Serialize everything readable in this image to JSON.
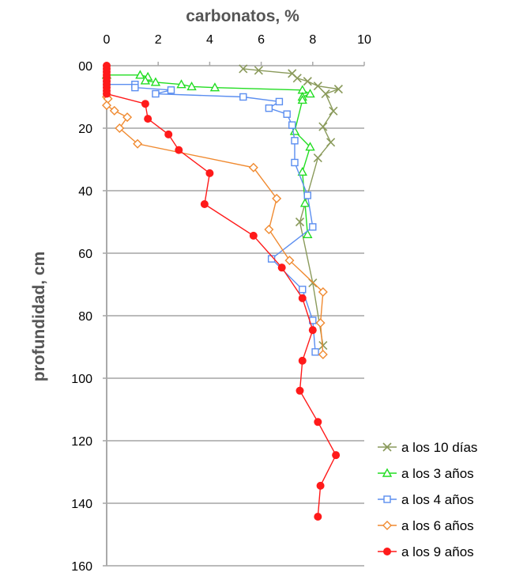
{
  "chart_data": {
    "type": "scatter",
    "title": "carbonatos,  %",
    "xlabel": "carbonatos,  %",
    "ylabel": "profundidad,  cm",
    "xlim": [
      0,
      10
    ],
    "ylim": [
      0,
      160
    ],
    "y_inverted": true,
    "x_axis_position": "top",
    "xticks": [
      "0",
      "2",
      "4",
      "6",
      "8",
      "10"
    ],
    "yticks": [
      "00",
      "20",
      "40",
      "60",
      "80",
      "100",
      "120",
      "140",
      "160"
    ],
    "grid": "horizontal",
    "legend_position": "bottom-right",
    "series": [
      {
        "name": "a los 10 días",
        "color": "#8a9a5b",
        "marker": "x",
        "x": [
          5.3,
          5.9,
          7.2,
          7.4,
          7.8,
          8.2,
          9.0,
          8.5,
          8.8,
          8.4,
          8.7,
          8.2,
          7.5,
          8.0,
          8.4
        ],
        "y": [
          1,
          1.5,
          2.5,
          4,
          5,
          6.5,
          7.5,
          9,
          14.5,
          19.5,
          24.5,
          29.5,
          50,
          69.5,
          89.5
        ]
      },
      {
        "name": "a los 3 años",
        "color": "#22dd22",
        "marker": "triangle",
        "x": [
          0,
          1.3,
          1.6,
          1.5,
          1.9,
          2.9,
          3.3,
          4.2,
          7.6,
          7.9,
          7.6,
          7.6,
          7.3,
          7.9,
          7.6,
          7.7,
          7.8
        ],
        "y": [
          3,
          3,
          3.6,
          4.8,
          5.3,
          6,
          6.7,
          7,
          7.8,
          9,
          10,
          11,
          21,
          26,
          34,
          44,
          54
        ]
      },
      {
        "name": "a los 4 años",
        "color": "#5b8ef0",
        "marker": "square",
        "x": [
          0,
          1.1,
          1.1,
          2.5,
          1.9,
          5.3,
          6.7,
          6.3,
          7.0,
          7.2,
          7.3,
          7.3,
          7.8,
          8.0,
          6.4,
          7.6,
          8.0,
          8.1
        ],
        "y": [
          6,
          6,
          7,
          7.8,
          9,
          10,
          11.5,
          13.6,
          15.5,
          19,
          24,
          31,
          41.5,
          51.6,
          61.8,
          71.6,
          81.5,
          91.6
        ]
      },
      {
        "name": "a los 6 años",
        "color": "#f08a30",
        "marker": "diamond",
        "x": [
          0,
          0.05,
          0,
          0.3,
          0.8,
          0.5,
          1.2,
          5.7,
          6.6,
          6.3,
          7.1,
          8.4,
          8.3,
          8.4
        ],
        "y": [
          10,
          10.6,
          12.7,
          14.4,
          16.5,
          20,
          25,
          32.6,
          42.5,
          52.4,
          62.3,
          72.4,
          82.3,
          92.4
        ]
      },
      {
        "name": "a los 9 años",
        "color": "#ff1a1a",
        "marker": "circle",
        "x": [
          0,
          0,
          0,
          0,
          0,
          0,
          0,
          0,
          0,
          0,
          1.5,
          1.6,
          2.4,
          2.8,
          4.0,
          3.8,
          5.7,
          6.8,
          7.6,
          8.0,
          7.6,
          7.5,
          8.2,
          8.9,
          8.3,
          8.2
        ],
        "y": [
          0,
          1,
          2,
          3,
          4,
          5,
          6,
          7,
          8,
          9,
          12.2,
          17,
          22,
          27,
          34.4,
          44.3,
          54.4,
          64.6,
          74.4,
          84.6,
          94.4,
          104,
          114,
          124.6,
          134.4,
          144.3
        ]
      }
    ]
  }
}
